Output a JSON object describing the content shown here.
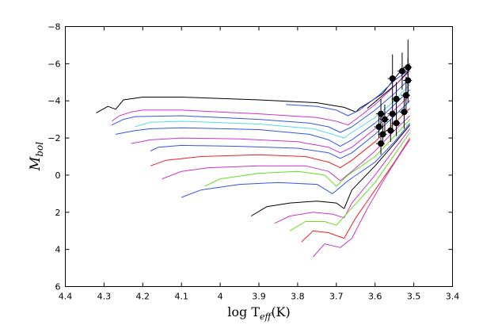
{
  "chart_data": {
    "type": "line",
    "title": "",
    "xlabel": "log T",
    "xlabel_sub": "eff",
    "xlabel_suffix": "(K)",
    "ylabel": "M",
    "ylabel_sub": "bol",
    "xlim": [
      4.4,
      3.4
    ],
    "ylim": [
      6,
      -8
    ],
    "xticks": [
      4.4,
      4.3,
      4.2,
      4.1,
      4.0,
      3.9,
      3.8,
      3.7,
      3.6,
      3.5,
      3.4
    ],
    "xtick_labels": [
      "4.4",
      "4.3",
      "4.2",
      "4.1",
      "4",
      "3.9",
      "3.8",
      "3.7",
      "3.6",
      "3.5",
      "3.4"
    ],
    "yticks": [
      6,
      4,
      2,
      0,
      -2,
      -4,
      -6,
      -8
    ],
    "ytick_labels": [
      "6",
      "4",
      "2",
      "0",
      "−2",
      "−4",
      "−6",
      "−8"
    ],
    "grid": false,
    "legend": "none",
    "series": [
      {
        "color": "#000000",
        "points": [
          [
            4.32,
            -3.35
          ],
          [
            4.29,
            -3.7
          ],
          [
            4.27,
            -3.55
          ],
          [
            4.25,
            -4.05
          ],
          [
            4.2,
            -4.2
          ],
          [
            4.1,
            -4.2
          ],
          [
            3.9,
            -4.05
          ],
          [
            3.75,
            -3.9
          ],
          [
            3.68,
            -3.65
          ],
          [
            3.65,
            -3.4
          ],
          [
            3.64,
            -3.6
          ],
          [
            3.62,
            -3.85
          ],
          [
            3.58,
            -4.4
          ],
          [
            3.55,
            -5.2
          ],
          [
            3.53,
            -5.7
          ],
          [
            3.51,
            -6.0
          ]
        ]
      },
      {
        "color": "#000000",
        "points": [
          [
            3.62,
            -3.6
          ],
          [
            3.58,
            -4.3
          ],
          [
            3.54,
            -5.0
          ],
          [
            3.51,
            -5.7
          ]
        ]
      },
      {
        "color": "#cc33cc",
        "points": [
          [
            4.28,
            -2.9
          ],
          [
            4.26,
            -3.2
          ],
          [
            4.23,
            -3.4
          ],
          [
            4.2,
            -3.5
          ],
          [
            4.1,
            -3.5
          ],
          [
            3.9,
            -3.3
          ],
          [
            3.75,
            -3.1
          ],
          [
            3.7,
            -2.9
          ],
          [
            3.67,
            -2.7
          ],
          [
            3.65,
            -3.0
          ],
          [
            3.6,
            -3.8
          ],
          [
            3.55,
            -4.8
          ],
          [
            3.51,
            -5.6
          ]
        ]
      },
      {
        "color": "#3355ee",
        "points": [
          [
            3.83,
            -3.8
          ],
          [
            3.75,
            -3.7
          ],
          [
            3.7,
            -3.5
          ],
          [
            3.67,
            -3.2
          ],
          [
            3.64,
            -3.5
          ],
          [
            3.59,
            -4.3
          ],
          [
            3.55,
            -5.1
          ],
          [
            3.51,
            -5.7
          ]
        ]
      },
      {
        "color": "#3355ee",
        "points": [
          [
            4.28,
            -2.7
          ],
          [
            4.25,
            -3.0
          ],
          [
            4.22,
            -3.15
          ],
          [
            4.1,
            -3.2
          ],
          [
            3.9,
            -3.0
          ],
          [
            3.77,
            -2.8
          ],
          [
            3.72,
            -2.6
          ],
          [
            3.69,
            -2.3
          ],
          [
            3.66,
            -2.6
          ],
          [
            3.6,
            -3.5
          ],
          [
            3.55,
            -4.4
          ],
          [
            3.51,
            -5.2
          ]
        ]
      },
      {
        "color": "#55dddd",
        "points": [
          [
            4.22,
            -2.6
          ],
          [
            4.18,
            -2.85
          ],
          [
            4.1,
            -2.9
          ],
          [
            3.9,
            -2.75
          ],
          [
            3.76,
            -2.5
          ],
          [
            3.71,
            -2.2
          ],
          [
            3.68,
            -2.0
          ],
          [
            3.66,
            -2.3
          ],
          [
            3.6,
            -3.1
          ],
          [
            3.55,
            -4.0
          ],
          [
            3.51,
            -4.9
          ]
        ]
      },
      {
        "color": "#3355ee",
        "points": [
          [
            4.27,
            -2.2
          ],
          [
            4.22,
            -2.4
          ],
          [
            4.18,
            -2.5
          ],
          [
            4.1,
            -2.55
          ],
          [
            3.9,
            -2.45
          ],
          [
            3.77,
            -2.2
          ],
          [
            3.72,
            -1.9
          ],
          [
            3.69,
            -1.55
          ],
          [
            3.66,
            -1.9
          ],
          [
            3.6,
            -2.8
          ],
          [
            3.55,
            -3.8
          ],
          [
            3.51,
            -4.6
          ]
        ]
      },
      {
        "color": "#cc33cc",
        "points": [
          [
            4.23,
            -1.7
          ],
          [
            4.18,
            -1.9
          ],
          [
            4.1,
            -2.0
          ],
          [
            3.95,
            -1.95
          ],
          [
            3.8,
            -1.8
          ],
          [
            3.72,
            -1.5
          ],
          [
            3.69,
            -1.2
          ],
          [
            3.66,
            -1.5
          ],
          [
            3.6,
            -2.5
          ],
          [
            3.55,
            -3.5
          ],
          [
            3.51,
            -4.3
          ]
        ]
      },
      {
        "color": "#3355ee",
        "points": [
          [
            4.18,
            -1.3
          ],
          [
            4.16,
            -1.5
          ],
          [
            4.1,
            -1.6
          ],
          [
            3.95,
            -1.55
          ],
          [
            3.8,
            -1.45
          ],
          [
            3.72,
            -1.2
          ],
          [
            3.69,
            -0.9
          ],
          [
            3.66,
            -1.2
          ],
          [
            3.6,
            -2.2
          ],
          [
            3.55,
            -3.2
          ],
          [
            3.51,
            -4.0
          ]
        ]
      },
      {
        "color": "#ee2222",
        "points": [
          [
            4.18,
            -0.5
          ],
          [
            4.14,
            -0.8
          ],
          [
            4.05,
            -1.0
          ],
          [
            3.9,
            -1.1
          ],
          [
            3.78,
            -1.0
          ],
          [
            3.72,
            -0.7
          ],
          [
            3.69,
            -0.4
          ],
          [
            3.66,
            -0.8
          ],
          [
            3.6,
            -1.8
          ],
          [
            3.55,
            -2.8
          ],
          [
            3.51,
            -3.6
          ]
        ]
      },
      {
        "color": "#cc33cc",
        "points": [
          [
            4.15,
            0.2
          ],
          [
            4.1,
            -0.2
          ],
          [
            4.03,
            -0.4
          ],
          [
            3.9,
            -0.5
          ],
          [
            3.78,
            -0.5
          ],
          [
            3.72,
            -0.2
          ],
          [
            3.69,
            0.3
          ],
          [
            3.66,
            -0.2
          ],
          [
            3.6,
            -1.3
          ],
          [
            3.55,
            -2.4
          ],
          [
            3.51,
            -3.2
          ]
        ]
      },
      {
        "color": "#66dd22",
        "points": [
          [
            4.04,
            0.6
          ],
          [
            4.0,
            0.2
          ],
          [
            3.9,
            -0.1
          ],
          [
            3.8,
            -0.2
          ],
          [
            3.73,
            0.0
          ],
          [
            3.7,
            0.6
          ],
          [
            3.67,
            0.0
          ],
          [
            3.6,
            -1.0
          ],
          [
            3.55,
            -2.1
          ],
          [
            3.51,
            -3.0
          ]
        ]
      },
      {
        "color": "#3355ee",
        "points": [
          [
            4.1,
            1.2
          ],
          [
            4.05,
            0.8
          ],
          [
            3.95,
            0.5
          ],
          [
            3.85,
            0.4
          ],
          [
            3.75,
            0.5
          ],
          [
            3.71,
            1.0
          ],
          [
            3.67,
            0.3
          ],
          [
            3.6,
            -0.7
          ],
          [
            3.55,
            -1.8
          ],
          [
            3.51,
            -2.8
          ]
        ]
      },
      {
        "color": "#000000",
        "points": [
          [
            3.92,
            2.2
          ],
          [
            3.88,
            1.7
          ],
          [
            3.82,
            1.5
          ],
          [
            3.75,
            1.4
          ],
          [
            3.7,
            1.5
          ],
          [
            3.68,
            1.8
          ],
          [
            3.66,
            0.8
          ],
          [
            3.6,
            -0.5
          ],
          [
            3.55,
            -1.7
          ],
          [
            3.51,
            -2.7
          ]
        ]
      },
      {
        "color": "#cc33cc",
        "points": [
          [
            3.86,
            2.6
          ],
          [
            3.82,
            2.2
          ],
          [
            3.76,
            2.0
          ],
          [
            3.71,
            2.1
          ],
          [
            3.68,
            2.3
          ],
          [
            3.66,
            1.5
          ],
          [
            3.6,
            0.0
          ],
          [
            3.55,
            -1.4
          ],
          [
            3.51,
            -2.5
          ]
        ]
      },
      {
        "color": "#66dd22",
        "points": [
          [
            3.82,
            3.0
          ],
          [
            3.78,
            2.5
          ],
          [
            3.73,
            2.5
          ],
          [
            3.7,
            2.7
          ],
          [
            3.67,
            2.0
          ],
          [
            3.6,
            0.4
          ],
          [
            3.55,
            -1.1
          ],
          [
            3.51,
            -2.3
          ]
        ]
      },
      {
        "color": "#ee2222",
        "points": [
          [
            3.79,
            3.6
          ],
          [
            3.76,
            3.0
          ],
          [
            3.72,
            3.1
          ],
          [
            3.68,
            3.4
          ],
          [
            3.65,
            2.3
          ],
          [
            3.6,
            0.8
          ],
          [
            3.55,
            -0.7
          ],
          [
            3.51,
            -2.0
          ]
        ]
      },
      {
        "color": "#cc33cc",
        "points": [
          [
            3.76,
            4.4
          ],
          [
            3.73,
            3.7
          ],
          [
            3.69,
            3.9
          ],
          [
            3.66,
            3.4
          ],
          [
            3.62,
            1.8
          ],
          [
            3.57,
            0.0
          ],
          [
            3.53,
            -1.3
          ],
          [
            3.51,
            -1.9
          ]
        ]
      }
    ],
    "markers": [
      {
        "x": 3.555,
        "y": -5.2,
        "err": 1.3
      },
      {
        "x": 3.53,
        "y": -5.6,
        "err": 1.0
      },
      {
        "x": 3.515,
        "y": -5.8,
        "err": 1.5
      },
      {
        "x": 3.515,
        "y": -5.1,
        "err": 1.2
      },
      {
        "x": 3.545,
        "y": -4.1,
        "err": 0.9
      },
      {
        "x": 3.52,
        "y": -4.3,
        "err": 1.0
      },
      {
        "x": 3.585,
        "y": -3.3,
        "err": 0.8
      },
      {
        "x": 3.575,
        "y": -3.0,
        "err": 0.8
      },
      {
        "x": 3.555,
        "y": -3.3,
        "err": 0.8
      },
      {
        "x": 3.525,
        "y": -3.4,
        "err": 0.9
      },
      {
        "x": 3.59,
        "y": -2.6,
        "err": 0.6
      },
      {
        "x": 3.58,
        "y": -2.2,
        "err": 0.6
      },
      {
        "x": 3.56,
        "y": -2.4,
        "err": 0.6
      },
      {
        "x": 3.545,
        "y": -2.8,
        "err": 0.7
      },
      {
        "x": 3.585,
        "y": -1.7,
        "err": 0.6
      }
    ],
    "marker_color": "#000000"
  }
}
